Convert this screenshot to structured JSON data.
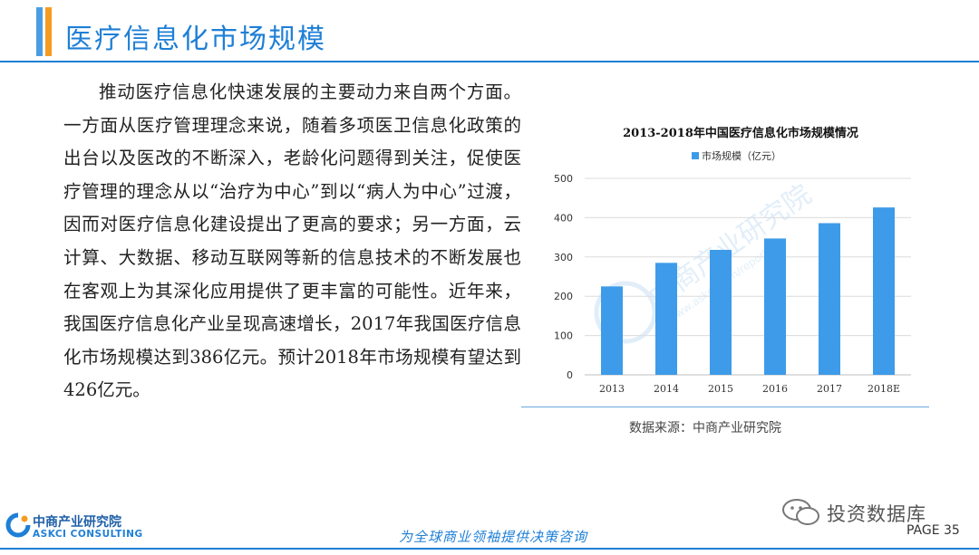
{
  "header": {
    "title": "医疗信息化市场规模"
  },
  "body": {
    "paragraph": "推动医疗信息化快速发展的主要动力来自两个方面。一方面从医疗管理理念来说，随着多项医卫信息化政策的出台以及医改的不断深入，老龄化问题得到关注，促使医疗管理的理念从以“治疗为中心”到以“病人为中心”过渡，因而对医疗信息化建设提出了更高的要求；另一方面，云计算、大数据、移动互联网等新的信息技术的不断发展也在客观上为其深化应用提供了更丰富的可能性。近年来，我国医疗信息化产业呈现高速增长，2017年我国医疗信息化市场规模达到386亿元。预计2018年市场规模有望达到426亿元。"
  },
  "chart_data": {
    "type": "bar",
    "title": "2013-2018年中国医疗信息化市场规模情况",
    "categories": [
      "2013",
      "2014",
      "2015",
      "2016",
      "2017",
      "2018E"
    ],
    "series": [
      {
        "name": "市场规模（亿元）",
        "values": [
          225,
          285,
          318,
          347,
          386,
          426
        ]
      }
    ],
    "ylim": [
      0,
      500
    ],
    "yticks": [
      0,
      100,
      200,
      300,
      400,
      500
    ],
    "grid": true,
    "legend": "top",
    "color": "#3d9be9"
  },
  "chart_meta": {
    "watermark_cn": "中商产业研究院",
    "watermark_en": "www.askci.com/reports/"
  },
  "source": "数据来源：中商产业研究院",
  "footer": {
    "logo_cn": "中商产业研究院",
    "logo_en": "ASKCI CONSULTING",
    "slogan": "为全球商业领袖提供决策咨询",
    "wechat": "投资数据库",
    "page": "PAGE 35"
  },
  "colors": {
    "brand_blue": "#1e7fd6",
    "accent_orange": "#f49c1f",
    "bar_blue": "#3d9be9"
  }
}
